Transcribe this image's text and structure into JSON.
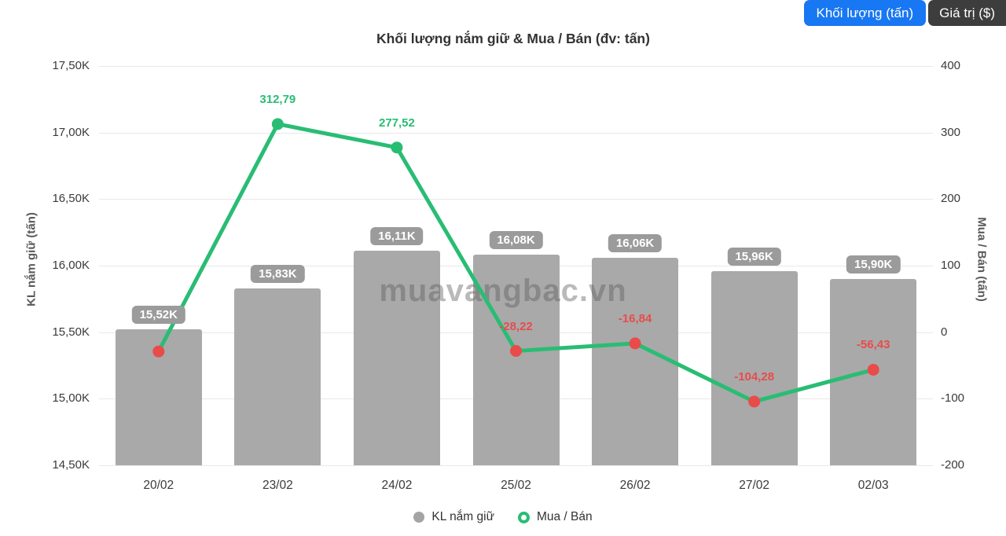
{
  "header": {
    "buttons": [
      {
        "label": "Khối lượng (tấn)",
        "active": true,
        "bg": "#1877f2"
      },
      {
        "label": "Giá trị ($)",
        "active": false,
        "bg": "#3d3d3d"
      }
    ]
  },
  "title": "Khối lượng nắm giữ & Mua / Bán (đv: tấn)",
  "watermark": "muavangbac.vn",
  "legend": [
    {
      "label": "KL nắm giữ",
      "marker": "gray-circle"
    },
    {
      "label": "Mua / Bán",
      "marker": "green-ring-circle"
    }
  ],
  "colors": {
    "bar": "#a9a9a9",
    "bar_label_bg": "#9b9b9b",
    "line": "#29bd74",
    "positive_label": "#29bd74",
    "negative_label": "#e94b4b",
    "negative_point": "#e94b4b",
    "active_button": "#1877f2",
    "inactive_button": "#3d3d3d"
  },
  "chart_data": {
    "type": "combo-bar-line",
    "title": "Khối lượng nắm giữ & Mua / Bán (đv: tấn)",
    "categories": [
      "20/02",
      "23/02",
      "24/02",
      "25/02",
      "26/02",
      "27/02",
      "02/03"
    ],
    "series": [
      {
        "name": "KL nắm giữ",
        "type": "bar",
        "axis": "left",
        "values": [
          15520,
          15830,
          16110,
          16080,
          16060,
          15960,
          15900
        ],
        "labels": [
          "15,52K",
          "15,83K",
          "16,11K",
          "16,08K",
          "16,06K",
          "15,96K",
          "15,90K"
        ]
      },
      {
        "name": "Mua / Bán",
        "type": "line",
        "axis": "right",
        "values": [
          -29,
          312.79,
          277.52,
          -28.22,
          -16.84,
          -104.28,
          -56.43
        ],
        "labels": [
          "",
          "312,79",
          "277,52",
          "-28,22",
          "-16,84",
          "-104,28",
          "-56,43"
        ]
      }
    ],
    "left_axis": {
      "title": "KL nắm giữ (tấn)",
      "min": 14500,
      "max": 17500,
      "ticks": [
        "17,50K",
        "17,00K",
        "16,50K",
        "16,00K",
        "15,50K",
        "15,00K",
        "14,50K"
      ]
    },
    "right_axis": {
      "title": "Mua / Bán (tấn)",
      "min": -200,
      "max": 400,
      "ticks": [
        "400",
        "300",
        "200",
        "100",
        "0",
        "-100",
        "-200"
      ]
    },
    "grid": true,
    "legend_position": "bottom"
  }
}
